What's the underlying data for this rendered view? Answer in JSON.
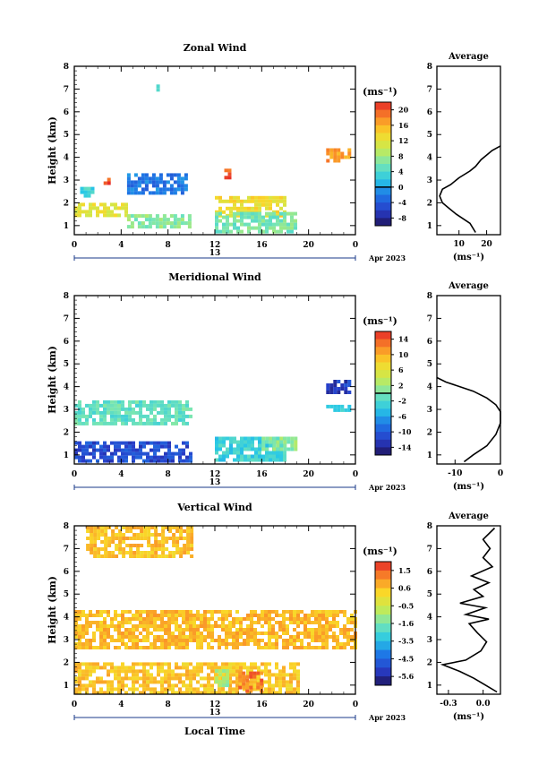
{
  "chart_data": [
    {
      "type": "heatmap",
      "title": "Zonal Wind",
      "ylabel": "Height (km)",
      "xticks": [
        "0",
        "4",
        "8",
        "12",
        "16",
        "20",
        "0"
      ],
      "yticks": [
        "1",
        "2",
        "3",
        "4",
        "5",
        "6",
        "7",
        "8"
      ],
      "xlim": [
        0,
        24
      ],
      "ylim": [
        0.6,
        8.0
      ],
      "date_label": "Apr 2023",
      "date_center": "13",
      "colorbar": {
        "unit": "(ms⁻¹)",
        "ticks": [
          "20",
          "16",
          "12",
          "8",
          "4",
          "0",
          "-4",
          "-8"
        ],
        "range": [
          -10,
          22
        ],
        "contour_at": 0
      },
      "regions": [
        {
          "x": [
            4.5,
            9.5
          ],
          "y": [
            2.4,
            3.3
          ],
          "v": -2
        },
        {
          "x": [
            0.5,
            1.5
          ],
          "y": [
            2.3,
            2.7
          ],
          "v": 3
        },
        {
          "x": [
            2.5,
            3.0
          ],
          "y": [
            2.9,
            3.1
          ],
          "v": 20
        },
        {
          "x": [
            0,
            4.5
          ],
          "y": [
            1.5,
            2.0
          ],
          "v": 12
        },
        {
          "x": [
            4.5,
            10
          ],
          "y": [
            1.0,
            1.5
          ],
          "v": 7
        },
        {
          "x": [
            12,
            18
          ],
          "y": [
            1.5,
            2.3
          ],
          "v": 13
        },
        {
          "x": [
            12,
            19
          ],
          "y": [
            0.8,
            1.6
          ],
          "v": 6
        },
        {
          "x": [
            12.8,
            13.5
          ],
          "y": [
            3.1,
            3.5
          ],
          "v": 20
        },
        {
          "x": [
            21.5,
            23.5
          ],
          "y": [
            3.8,
            4.4
          ],
          "v": 17
        },
        {
          "x": [
            7,
            7.3
          ],
          "y": [
            7.0,
            7.2
          ],
          "v": 5
        }
      ]
    },
    {
      "type": "line",
      "title": "Average",
      "xticks": [
        "10",
        "20"
      ],
      "yticks": [
        "1",
        "2",
        "3",
        "4",
        "5",
        "6",
        "7",
        "8"
      ],
      "xlabel": "(ms⁻¹)",
      "xlim": [
        2,
        25
      ],
      "ylim": [
        0.6,
        8.0
      ],
      "x": [
        16,
        14,
        9,
        6,
        4,
        3,
        4,
        7,
        10,
        14,
        16,
        18,
        20,
        22,
        25
      ],
      "y": [
        0.7,
        1.1,
        1.5,
        1.8,
        2.0,
        2.3,
        2.6,
        2.8,
        3.1,
        3.4,
        3.6,
        3.9,
        4.1,
        4.3,
        4.5
      ]
    },
    {
      "type": "heatmap",
      "title": "Meridional Wind",
      "ylabel": "Height (km)",
      "xticks": [
        "0",
        "4",
        "8",
        "12",
        "16",
        "20",
        "0"
      ],
      "yticks": [
        "1",
        "2",
        "3",
        "4",
        "5",
        "6",
        "7",
        "8"
      ],
      "xlim": [
        0,
        24
      ],
      "ylim": [
        0.6,
        8.0
      ],
      "date_label": "Apr 2023",
      "date_center": "13",
      "colorbar": {
        "unit": "(ms⁻¹)",
        "ticks": [
          "14",
          "10",
          "6",
          "2",
          "-2",
          "-6",
          "-10",
          "-14"
        ],
        "range": [
          -16,
          16
        ],
        "contour_at": 0
      },
      "regions": [
        {
          "x": [
            0,
            10
          ],
          "y": [
            2.4,
            3.4
          ],
          "v": -1
        },
        {
          "x": [
            0,
            10
          ],
          "y": [
            0.7,
            1.6
          ],
          "v": -11
        },
        {
          "x": [
            12,
            18
          ],
          "y": [
            0.8,
            1.8
          ],
          "v": -3
        },
        {
          "x": [
            16,
            19
          ],
          "y": [
            1.2,
            1.8
          ],
          "v": 1
        },
        {
          "x": [
            21.5,
            23.5
          ],
          "y": [
            3.7,
            4.3
          ],
          "v": -12
        },
        {
          "x": [
            21.5,
            23.5
          ],
          "y": [
            2.9,
            3.2
          ],
          "v": -4
        }
      ]
    },
    {
      "type": "line",
      "title": "Average",
      "xticks": [
        "-10",
        "0"
      ],
      "yticks": [
        "1",
        "2",
        "3",
        "4",
        "5",
        "6",
        "7",
        "8"
      ],
      "xlabel": "(ms⁻¹)",
      "xlim": [
        -14,
        0
      ],
      "ylim": [
        0.6,
        8.0
      ],
      "x": [
        -8,
        -6,
        -3,
        -1,
        0,
        0,
        -1,
        -3,
        -6,
        -9,
        -12,
        -14
      ],
      "y": [
        0.7,
        1.0,
        1.4,
        1.9,
        2.4,
        2.9,
        3.2,
        3.5,
        3.8,
        4.0,
        4.2,
        4.4
      ]
    },
    {
      "type": "heatmap",
      "title": "Vertical Wind",
      "xlabel": "Local Time",
      "ylabel": "Height (km)",
      "xticks": [
        "0",
        "4",
        "8",
        "12",
        "16",
        "20",
        "0"
      ],
      "yticks": [
        "1",
        "2",
        "3",
        "4",
        "5",
        "6",
        "7",
        "8"
      ],
      "xlim": [
        0,
        24
      ],
      "ylim": [
        0.6,
        8.0
      ],
      "date_label": "Apr 2023",
      "date_center": "13",
      "colorbar": {
        "unit": "(ms⁻¹)",
        "ticks": [
          "1.5",
          "0.6",
          "-0.5",
          "-1.6",
          "-3.5",
          "-4.5",
          "-5.6"
        ],
        "range": [
          -6.2,
          2.2
        ]
      },
      "regions": [
        {
          "x": [
            0,
            24
          ],
          "y": [
            2.6,
            4.3
          ],
          "v": 0.5
        },
        {
          "x": [
            0,
            19
          ],
          "y": [
            0.6,
            2.0
          ],
          "v": 0.3
        },
        {
          "x": [
            1,
            10
          ],
          "y": [
            6.6,
            8.0
          ],
          "v": 0.4
        },
        {
          "x": [
            12,
            13
          ],
          "y": [
            1.0,
            1.7
          ],
          "v": -1.5
        },
        {
          "x": [
            14,
            16
          ],
          "y": [
            0.8,
            1.6
          ],
          "v": 1.3
        }
      ]
    },
    {
      "type": "line",
      "title": "Average",
      "xticks": [
        "-0.3",
        "0.0"
      ],
      "yticks": [
        "1",
        "2",
        "3",
        "4",
        "5",
        "6",
        "7",
        "8"
      ],
      "xlabel": "(ms⁻¹)",
      "xlim": [
        -0.4,
        0.15
      ],
      "ylim": [
        0.6,
        8.0
      ],
      "x": [
        0.12,
        0.02,
        -0.08,
        -0.2,
        -0.35,
        -0.15,
        -0.02,
        0.03,
        -0.05,
        -0.12,
        0.05,
        -0.15,
        0.02,
        -0.2,
        0.0,
        -0.08,
        0.05,
        -0.1,
        0.08,
        0.0,
        0.06,
        0.0,
        0.1
      ],
      "y": [
        0.7,
        1.0,
        1.3,
        1.6,
        1.9,
        2.1,
        2.5,
        2.9,
        3.3,
        3.7,
        3.9,
        4.1,
        4.4,
        4.6,
        4.9,
        5.2,
        5.5,
        5.8,
        6.2,
        6.6,
        7.0,
        7.4,
        7.9
      ]
    }
  ]
}
